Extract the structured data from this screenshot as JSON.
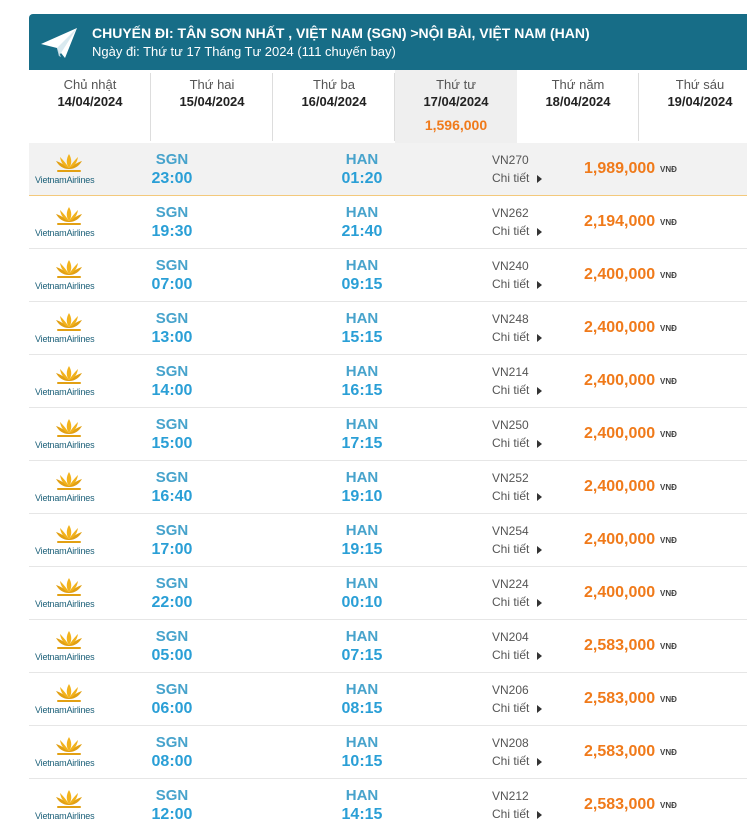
{
  "header": {
    "title": "CHUYẾN ĐI: TÂN SƠN NHẤT , VIỆT NAM (SGN) >NỘI BÀI, VIỆT NAM (HAN)",
    "subtitle": "Ngày đi: Thứ tư 17 Tháng Tư 2024 (111 chuyến bay)",
    "icon": "paper-plane-icon",
    "color": "#176d87"
  },
  "days": [
    {
      "name": "Chủ nhật",
      "date": "14/04/2024",
      "price": ""
    },
    {
      "name": "Thứ hai",
      "date": "15/04/2024",
      "price": ""
    },
    {
      "name": "Thứ ba",
      "date": "16/04/2024",
      "price": ""
    },
    {
      "name": "Thứ tư",
      "date": "17/04/2024",
      "price": "1,596,000",
      "active": true
    },
    {
      "name": "Thứ năm",
      "date": "18/04/2024",
      "price": ""
    },
    {
      "name": "Thứ sáu",
      "date": "19/04/2024",
      "price": ""
    }
  ],
  "airline": {
    "name": "VietnamAirlines",
    "logo_icon": "lotus-icon"
  },
  "detail_label": "Chi tiết",
  "currency": "VNĐ",
  "colors": {
    "price": "#f07a1a",
    "time": "#2a9fd6",
    "highlight_row": "#f2f2f2"
  },
  "flights": [
    {
      "from": "SGN",
      "dep": "23:00",
      "to": "HAN",
      "arr": "01:20",
      "flight": "VN270",
      "price": "1,989,000"
    },
    {
      "from": "SGN",
      "dep": "19:30",
      "to": "HAN",
      "arr": "21:40",
      "flight": "VN262",
      "price": "2,194,000"
    },
    {
      "from": "SGN",
      "dep": "07:00",
      "to": "HAN",
      "arr": "09:15",
      "flight": "VN240",
      "price": "2,400,000"
    },
    {
      "from": "SGN",
      "dep": "13:00",
      "to": "HAN",
      "arr": "15:15",
      "flight": "VN248",
      "price": "2,400,000"
    },
    {
      "from": "SGN",
      "dep": "14:00",
      "to": "HAN",
      "arr": "16:15",
      "flight": "VN214",
      "price": "2,400,000"
    },
    {
      "from": "SGN",
      "dep": "15:00",
      "to": "HAN",
      "arr": "17:15",
      "flight": "VN250",
      "price": "2,400,000"
    },
    {
      "from": "SGN",
      "dep": "16:40",
      "to": "HAN",
      "arr": "19:10",
      "flight": "VN252",
      "price": "2,400,000"
    },
    {
      "from": "SGN",
      "dep": "17:00",
      "to": "HAN",
      "arr": "19:15",
      "flight": "VN254",
      "price": "2,400,000"
    },
    {
      "from": "SGN",
      "dep": "22:00",
      "to": "HAN",
      "arr": "00:10",
      "flight": "VN224",
      "price": "2,400,000"
    },
    {
      "from": "SGN",
      "dep": "05:00",
      "to": "HAN",
      "arr": "07:15",
      "flight": "VN204",
      "price": "2,583,000"
    },
    {
      "from": "SGN",
      "dep": "06:00",
      "to": "HAN",
      "arr": "08:15",
      "flight": "VN206",
      "price": "2,583,000"
    },
    {
      "from": "SGN",
      "dep": "08:00",
      "to": "HAN",
      "arr": "10:15",
      "flight": "VN208",
      "price": "2,583,000"
    },
    {
      "from": "SGN",
      "dep": "12:00",
      "to": "HAN",
      "arr": "14:15",
      "flight": "VN212",
      "price": "2,583,000"
    }
  ]
}
